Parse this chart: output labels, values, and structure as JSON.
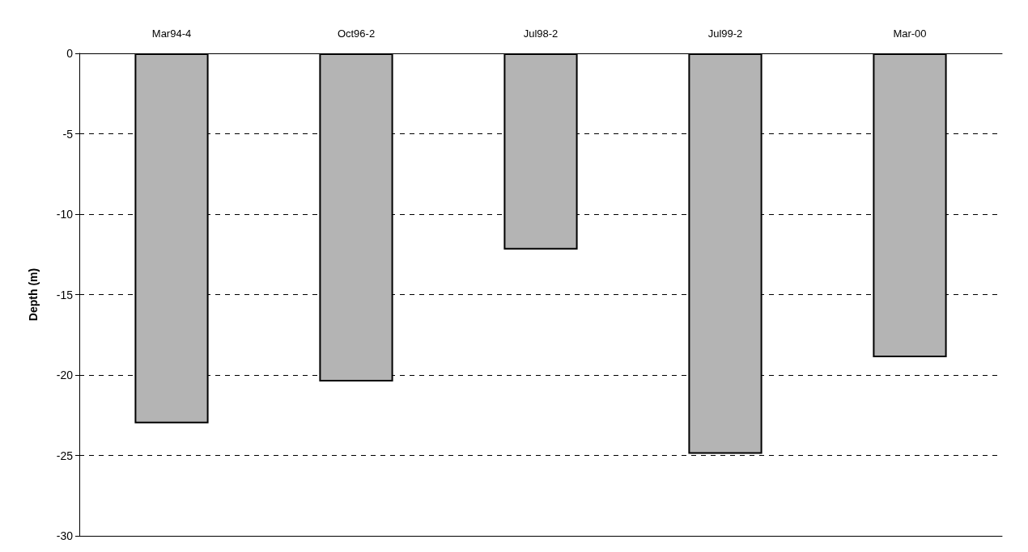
{
  "chart_data": {
    "type": "bar",
    "ylabel": "Depth (m)",
    "categories": [
      "Mar94-4",
      "Oct96-2",
      "Jul98-2",
      "Jul99-2",
      "Mar-00"
    ],
    "values": [
      -23,
      -20.4,
      -12.2,
      -24.9,
      -18.9
    ],
    "color": "#b4b4b4",
    "ylim": [
      -30,
      0
    ],
    "yticks": [
      -30,
      -25,
      -20,
      -15,
      -10,
      -5,
      0
    ],
    "grid": "y",
    "line_style": "dashed"
  }
}
